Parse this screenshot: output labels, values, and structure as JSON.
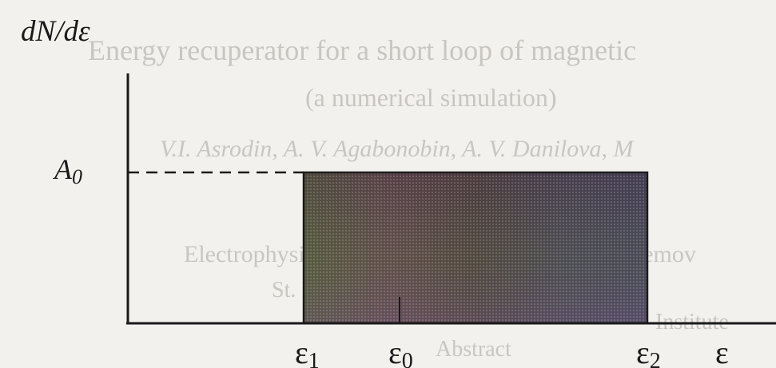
{
  "ylabel": "dN/dε",
  "xlabel": "ε",
  "level_label": {
    "main": "A",
    "sub": "0"
  },
  "ticks": [
    {
      "main": "ε",
      "sub": "1"
    },
    {
      "main": "ε",
      "sub": "0"
    },
    {
      "main": "ε",
      "sub": "2"
    }
  ],
  "bleed_through": [
    "Energy recuperator for a short loop of magnetic",
    "(a numerical simulation)",
    "V.I. Asrodin, A. V. Agabonobin, A. V. Danilova, M",
    "Electrophysical apparatus, named after D.V. Efremov",
    "St. Petersburg",
    "Abstract",
    "Institute"
  ],
  "colors": {
    "ink": "#1a1a1a",
    "paper": "#f3f1ee",
    "fill_band": [
      "#4a3a48",
      "#5a5a3a",
      "#3f5a55",
      "#6a4a52",
      "#4a4a6a"
    ]
  }
}
